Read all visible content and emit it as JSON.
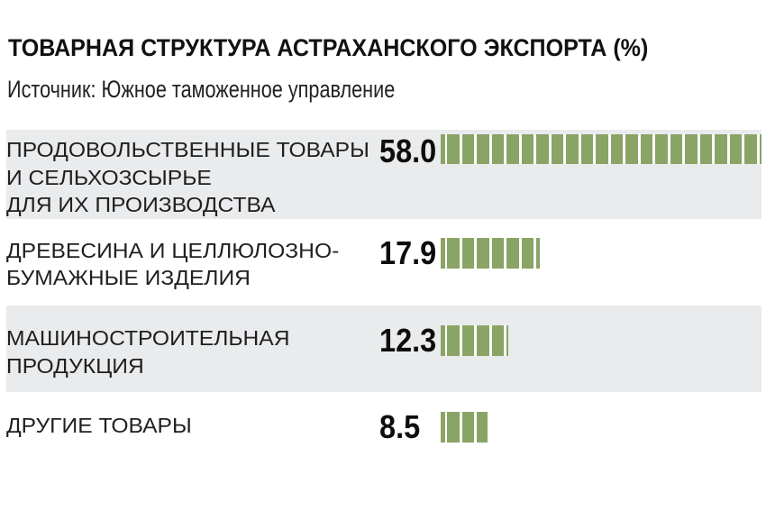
{
  "header": {
    "title": "ТОВАРНАЯ СТРУКТУРА АСТРАХАНСКОГО ЭКСПОРТА (%)",
    "source": "Источник: Южное таможенное управление"
  },
  "colors": {
    "bar_green": "#8aa465",
    "band_gray": "#e9ebed",
    "background": "#ffffff",
    "text_dark": "#1c1c1c"
  },
  "chart_data": {
    "type": "bar",
    "title": "ТОВАРНАЯ СТРУКТУРА АСТРАХАНСКОГО ЭКСПОРТА (%)",
    "source": "Источник: Южное таможенное управление",
    "unit": "%",
    "orientation": "horizontal",
    "grid": false,
    "legend": false,
    "xlim": [
      0,
      58
    ],
    "categories": [
      "ПРОДОВОЛЬСТВЕННЫЕ ТОВАРЫ И СЕЛЬХОЗСЫРЬЕ ДЛЯ ИХ ПРОИЗВОДСТВА",
      "ДРЕВЕСИНА И ЦЕЛЛЮЛОЗНО-БУМАЖНЫЕ ИЗДЕЛИЯ",
      "МАШИНОСТРОИТЕЛЬНАЯ ПРОДУКЦИЯ",
      "ДРУГИЕ ТОВАРЫ"
    ],
    "values": [
      58.0,
      17.9,
      12.3,
      8.5
    ],
    "rows": [
      {
        "label_lines": [
          "ПРОДОВОЛЬСТВЕННЫЕ ТОВАРЫ",
          "И СЕЛЬХОЗСЫРЬЕ",
          "ДЛЯ ИХ ПРОИЗВОДСТВА"
        ],
        "value": 58.0,
        "value_label": "58.0",
        "shaded": true
      },
      {
        "label_lines": [
          "ДРЕВЕСИНА И ЦЕЛЛЮЛОЗНО-",
          "БУМАЖНЫЕ ИЗДЕЛИЯ"
        ],
        "value": 17.9,
        "value_label": "17.9",
        "shaded": false
      },
      {
        "label_lines": [
          "МАШИНОСТРОИТЕЛЬНАЯ",
          "ПРОДУКЦИЯ"
        ],
        "value": 12.3,
        "value_label": "12.3",
        "shaded": true
      },
      {
        "label_lines": [
          "ДРУГИЕ ТОВАРЫ"
        ],
        "value": 8.5,
        "value_label": "8.5",
        "shaded": false
      }
    ]
  }
}
